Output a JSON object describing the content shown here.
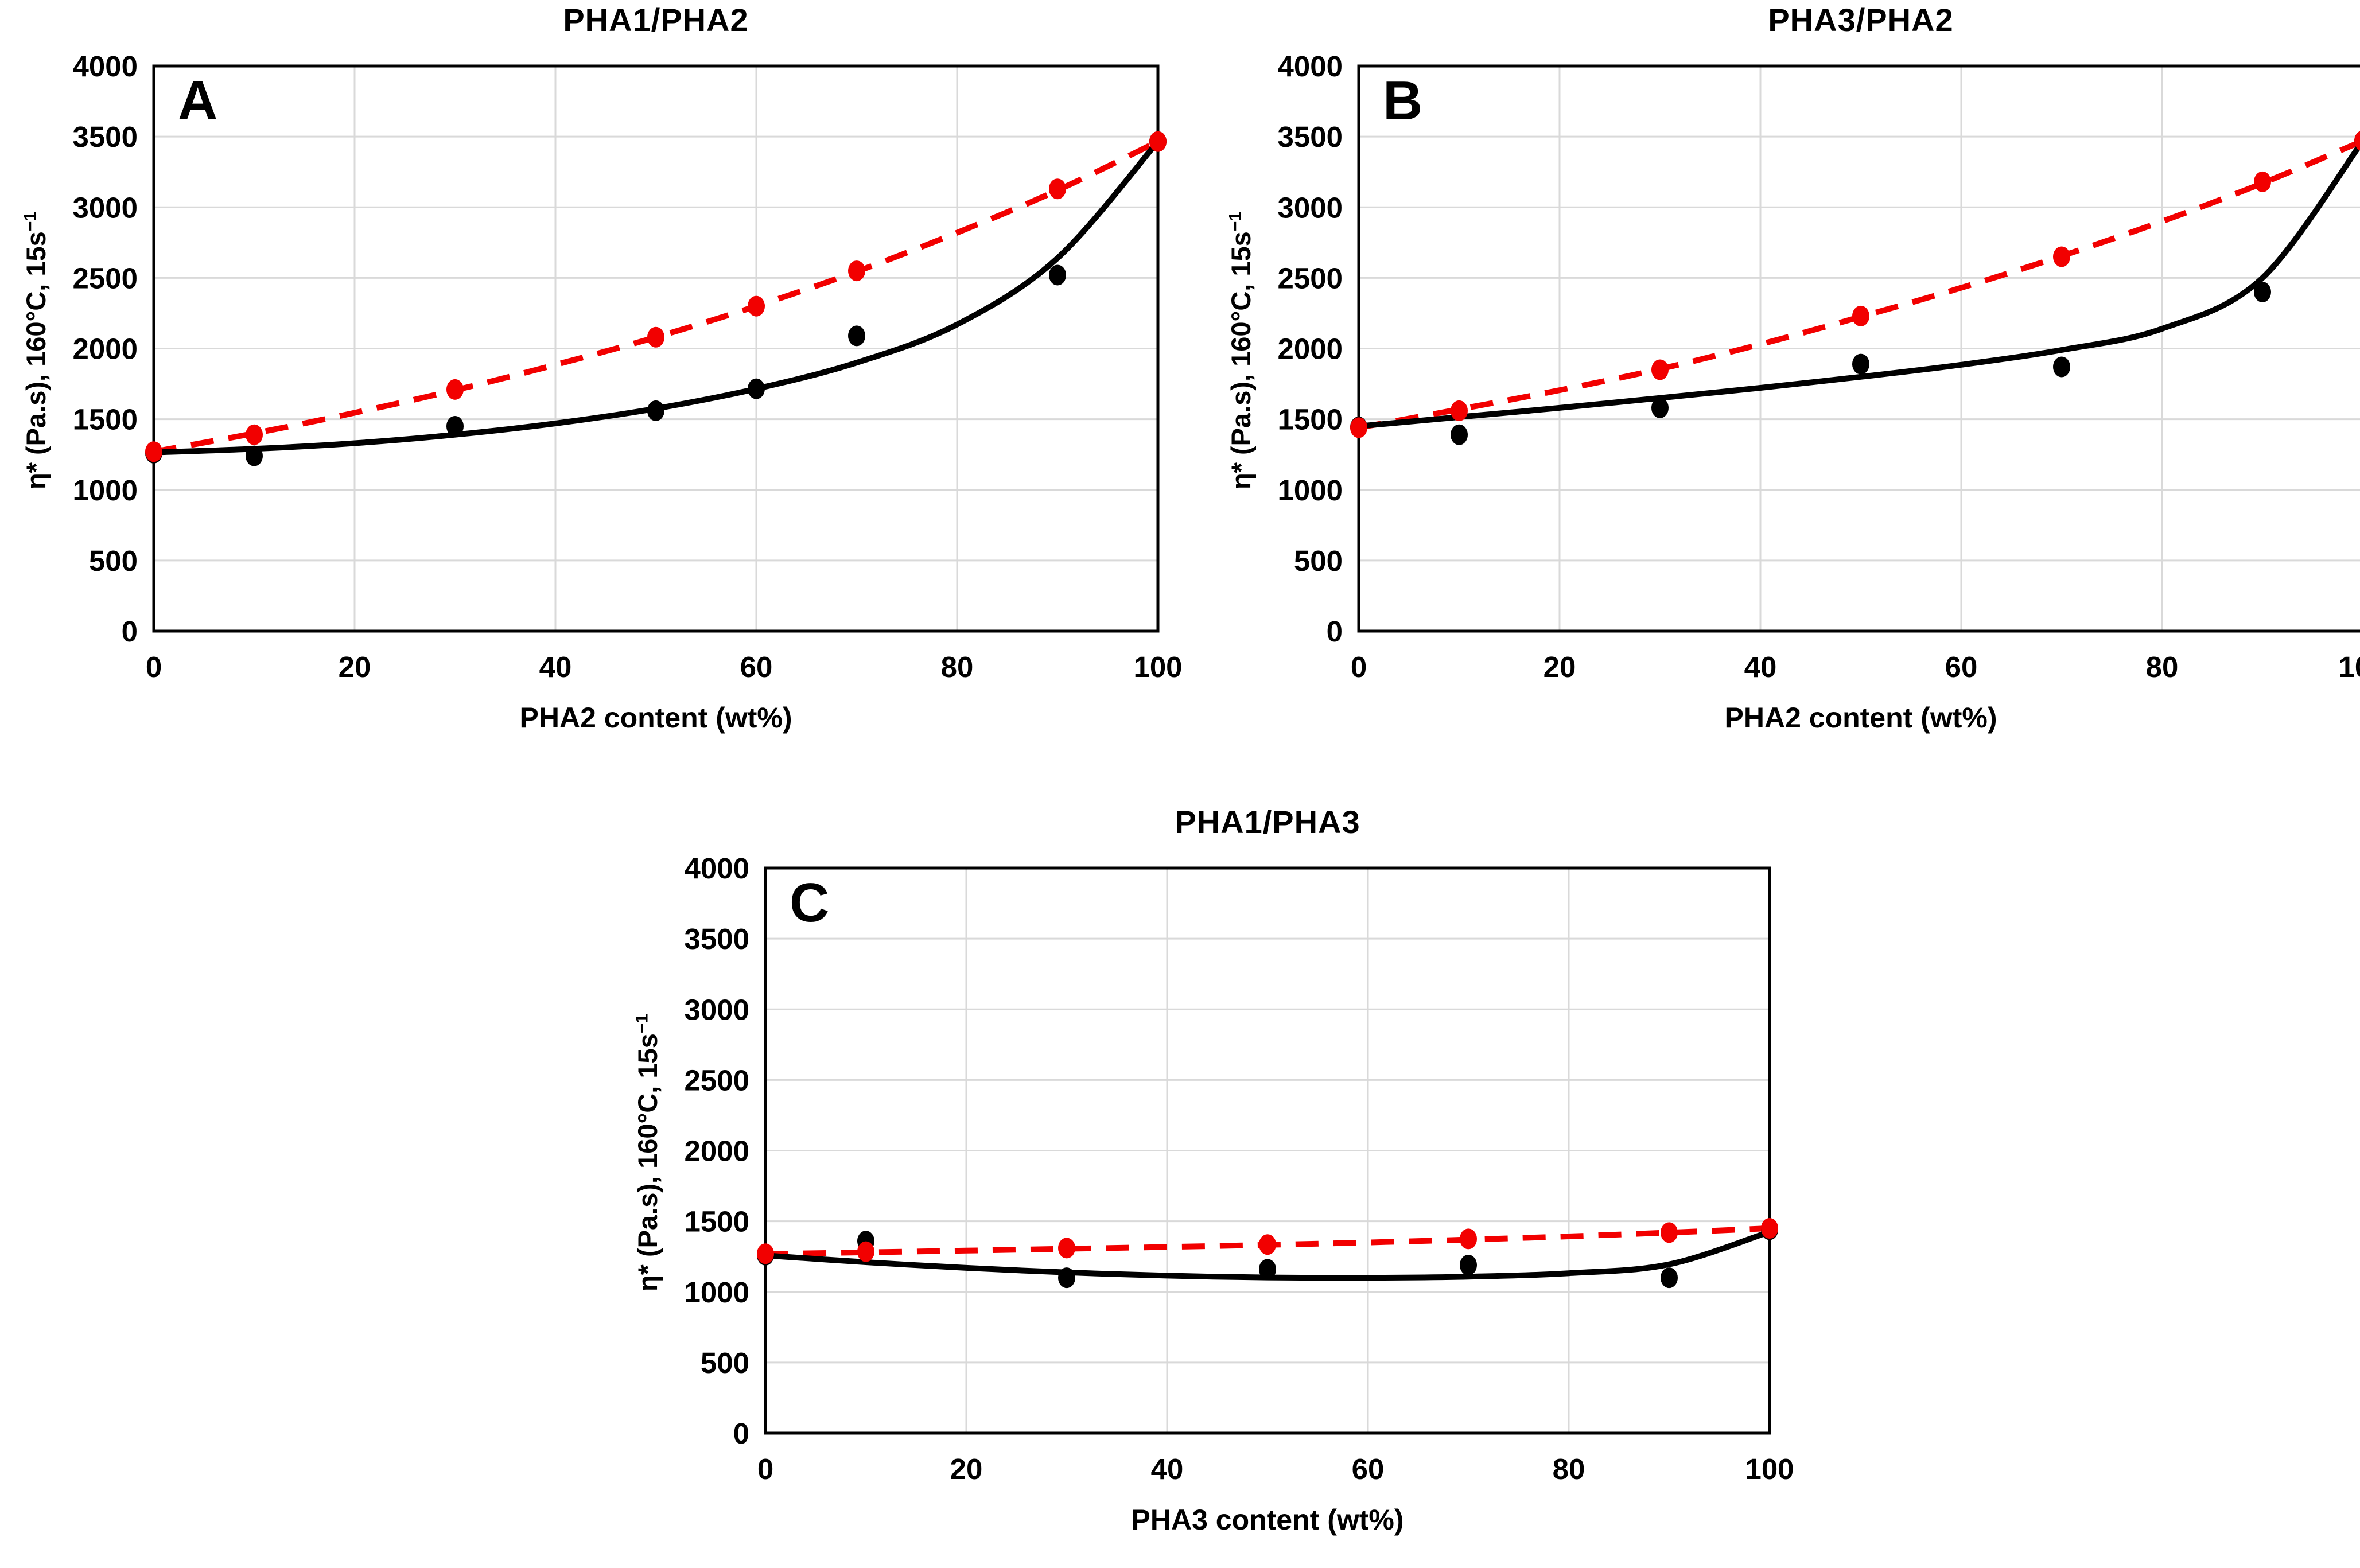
{
  "theme": {
    "background": "#ffffff",
    "grid_color": "#d9d9d9",
    "frame_color": "#000000",
    "red_series_color": "#f20000",
    "black_series_color": "#000000"
  },
  "chart_data": [
    {
      "type": "scatter",
      "panel": "A",
      "title": "PHA1/PHA2",
      "xlabel": "PHA2 content (wt%)",
      "ylabel_main": "η* (Pa.s), 160°C, 15s",
      "ylabel_sup": "−1",
      "xlim": [
        0,
        100
      ],
      "ylim": [
        0,
        4000
      ],
      "xtick": 20,
      "ytick": 500,
      "grid": true,
      "legend": "none",
      "series": [
        {
          "name": "red-dashed-fit",
          "color": "#f20000",
          "style": "dashed",
          "marker": "circle",
          "x": [
            0,
            10,
            30,
            50,
            60,
            70,
            90,
            100
          ],
          "y": [
            1270,
            1390,
            1710,
            2080,
            2300,
            2550,
            3130,
            3465
          ],
          "curve_x": [
            0,
            10,
            20,
            30,
            40,
            50,
            60,
            70,
            80,
            90,
            100
          ],
          "curve_y": [
            1270,
            1400,
            1545,
            1705,
            1885,
            2080,
            2300,
            2545,
            2820,
            3120,
            3465
          ]
        },
        {
          "name": "black-solid-fit",
          "color": "#000000",
          "style": "solid",
          "marker": "circle",
          "x": [
            0,
            10,
            30,
            50,
            60,
            70,
            90,
            100
          ],
          "y": [
            1260,
            1240,
            1450,
            1560,
            1715,
            2090,
            2520,
            3465
          ],
          "curve_x": [
            0,
            10,
            20,
            30,
            40,
            50,
            60,
            70,
            80,
            90,
            100
          ],
          "curve_y": [
            1265,
            1290,
            1330,
            1390,
            1470,
            1575,
            1715,
            1900,
            2170,
            2640,
            3465
          ]
        }
      ]
    },
    {
      "type": "scatter",
      "panel": "B",
      "title": "PHA3/PHA2",
      "xlabel": "PHA2 content (wt%)",
      "ylabel_main": "η* (Pa.s), 160°C, 15s",
      "ylabel_sup": "−1",
      "xlim": [
        0,
        100
      ],
      "ylim": [
        0,
        4000
      ],
      "xtick": 20,
      "ytick": 500,
      "grid": true,
      "legend": "none",
      "series": [
        {
          "name": "red-dashed-fit",
          "color": "#f20000",
          "style": "dashed",
          "marker": "circle",
          "x": [
            0,
            10,
            30,
            50,
            70,
            90,
            100
          ],
          "y": [
            1440,
            1560,
            1850,
            2230,
            2650,
            3180,
            3470
          ],
          "curve_x": [
            0,
            10,
            20,
            30,
            40,
            50,
            60,
            70,
            80,
            90,
            100
          ],
          "curve_y": [
            1440,
            1570,
            1705,
            1855,
            2030,
            2225,
            2430,
            2655,
            2900,
            3170,
            3470
          ]
        },
        {
          "name": "black-solid-fit",
          "color": "#000000",
          "style": "solid",
          "marker": "circle",
          "x": [
            0,
            10,
            30,
            50,
            70,
            90,
            100
          ],
          "y": [
            1445,
            1390,
            1580,
            1890,
            1870,
            2400,
            3470
          ],
          "curve_x": [
            0,
            10,
            20,
            30,
            40,
            50,
            60,
            70,
            80,
            90,
            100
          ],
          "curve_y": [
            1450,
            1515,
            1580,
            1650,
            1722,
            1800,
            1885,
            1990,
            2140,
            2500,
            3470
          ]
        }
      ]
    },
    {
      "type": "scatter",
      "panel": "C",
      "title": "PHA1/PHA3",
      "xlabel": "PHA3 content (wt%)",
      "ylabel_main": "η* (Pa.s), 160°C, 15s",
      "ylabel_sup": "−1",
      "xlim": [
        0,
        100
      ],
      "ylim": [
        0,
        4000
      ],
      "xtick": 20,
      "ytick": 500,
      "grid": true,
      "legend": "none",
      "series": [
        {
          "name": "red-dashed-fit",
          "color": "#f20000",
          "style": "dashed",
          "marker": "circle",
          "x": [
            0,
            10,
            30,
            50,
            70,
            90,
            100
          ],
          "y": [
            1270,
            1285,
            1310,
            1335,
            1375,
            1420,
            1450
          ],
          "curve_x": [
            0,
            10,
            20,
            30,
            40,
            50,
            60,
            70,
            80,
            90,
            100
          ],
          "curve_y": [
            1268,
            1280,
            1292,
            1305,
            1318,
            1333,
            1350,
            1370,
            1393,
            1420,
            1450
          ]
        },
        {
          "name": "black-solid-fit",
          "color": "#000000",
          "style": "solid",
          "marker": "circle",
          "x": [
            0,
            10,
            30,
            50,
            70,
            90,
            100
          ],
          "y": [
            1260,
            1360,
            1100,
            1160,
            1190,
            1100,
            1440
          ],
          "curve_x": [
            0,
            10,
            20,
            30,
            40,
            50,
            60,
            70,
            80,
            90,
            100
          ],
          "curve_y": [
            1258,
            1210,
            1170,
            1138,
            1115,
            1102,
            1100,
            1108,
            1132,
            1195,
            1425
          ]
        }
      ]
    }
  ]
}
